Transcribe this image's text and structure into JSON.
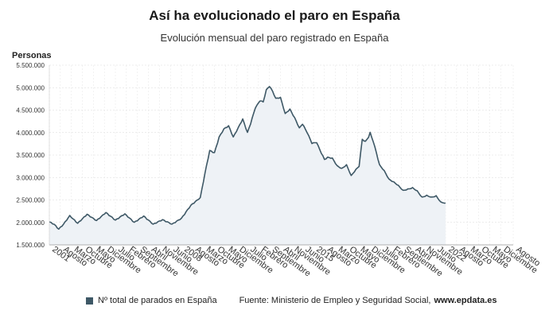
{
  "chart_data": {
    "type": "area",
    "title": "Así ha evolucionado el paro en España",
    "subtitle": "Evolución mensual del paro registrado en España",
    "ylabel": "Personas",
    "ylim": [
      1500000,
      5500000
    ],
    "yticks": [
      "1.500.000",
      "2.000.000",
      "2.500.000",
      "3.000.000",
      "3.500.000",
      "4.000.000",
      "4.500.000",
      "5.000.000",
      "5.500.000"
    ],
    "ytick_values": [
      1500000,
      2000000,
      2500000,
      3000000,
      3500000,
      4000000,
      4500000,
      5000000,
      5500000
    ],
    "x_labels": [
      "2001",
      "Agosto",
      "Marzo",
      "Octubre",
      "Mayo",
      "Diciembre",
      "Julio",
      "Febrero",
      "Septiembre",
      "Abril",
      "Noviembre",
      "Junio",
      "2008",
      "Agosto",
      "Marzo",
      "Octubre",
      "Mayo",
      "Diciembre",
      "Julio",
      "Febrero",
      "Septiembre",
      "Abril",
      "Noviembre",
      "Junio",
      "2015",
      "Agosto",
      "Marzo",
      "Octubre",
      "Mayo",
      "Diciembre",
      "Julio",
      "Febrero",
      "Septiembre",
      "Abril",
      "Noviembre",
      "Junio",
      "2022",
      "Agosto",
      "Marzo",
      "Octubre",
      "Mayo",
      "Diciembre",
      "Agosto"
    ],
    "x_label_months": [
      0,
      7,
      14,
      21,
      28,
      35,
      42,
      49,
      56,
      63,
      70,
      77,
      84,
      91,
      98,
      105,
      112,
      119,
      126,
      133,
      140,
      147,
      154,
      161,
      168,
      175,
      182,
      189,
      196,
      203,
      210,
      217,
      224,
      231,
      238,
      245,
      252,
      259,
      266,
      273,
      280,
      287,
      295
    ],
    "x_start": "2001-01",
    "x_end": "2025-08",
    "anchors": [
      [
        0,
        2010000
      ],
      [
        3,
        1960000
      ],
      [
        6,
        1850000
      ],
      [
        9,
        1960000
      ],
      [
        13,
        2150000
      ],
      [
        18,
        1980000
      ],
      [
        24,
        2180000
      ],
      [
        30,
        2040000
      ],
      [
        36,
        2220000
      ],
      [
        42,
        2050000
      ],
      [
        48,
        2190000
      ],
      [
        54,
        2000000
      ],
      [
        60,
        2140000
      ],
      [
        66,
        1960000
      ],
      [
        72,
        2060000
      ],
      [
        78,
        1960000
      ],
      [
        84,
        2090000
      ],
      [
        90,
        2380000
      ],
      [
        96,
        2550000
      ],
      [
        99,
        3100000
      ],
      [
        102,
        3600000
      ],
      [
        105,
        3550000
      ],
      [
        108,
        3900000
      ],
      [
        111,
        4080000
      ],
      [
        114,
        4150000
      ],
      [
        117,
        3900000
      ],
      [
        120,
        4100000
      ],
      [
        123,
        4300000
      ],
      [
        126,
        4000000
      ],
      [
        128,
        4200000
      ],
      [
        131,
        4550000
      ],
      [
        134,
        4710000
      ],
      [
        136,
        4680000
      ],
      [
        138,
        4950000
      ],
      [
        140,
        5030000
      ],
      [
        142,
        4920000
      ],
      [
        144,
        4760000
      ],
      [
        147,
        4780000
      ],
      [
        150,
        4420000
      ],
      [
        153,
        4520000
      ],
      [
        156,
        4330000
      ],
      [
        159,
        4100000
      ],
      [
        161,
        4190000
      ],
      [
        164,
        4000000
      ],
      [
        167,
        3760000
      ],
      [
        170,
        3780000
      ],
      [
        173,
        3540000
      ],
      [
        175,
        3400000
      ],
      [
        177,
        3450000
      ],
      [
        180,
        3430000
      ],
      [
        183,
        3260000
      ],
      [
        186,
        3200000
      ],
      [
        189,
        3280000
      ],
      [
        192,
        3040000
      ],
      [
        195,
        3180000
      ],
      [
        197,
        3250000
      ],
      [
        199,
        3850000
      ],
      [
        201,
        3800000
      ],
      [
        203,
        3900000
      ],
      [
        204,
        4000000
      ],
      [
        206,
        3800000
      ],
      [
        208,
        3550000
      ],
      [
        210,
        3280000
      ],
      [
        213,
        3150000
      ],
      [
        216,
        2960000
      ],
      [
        219,
        2900000
      ],
      [
        222,
        2820000
      ],
      [
        225,
        2710000
      ],
      [
        228,
        2740000
      ],
      [
        231,
        2770000
      ],
      [
        234,
        2700000
      ],
      [
        237,
        2560000
      ],
      [
        240,
        2600000
      ],
      [
        243,
        2560000
      ],
      [
        246,
        2590000
      ],
      [
        249,
        2450000
      ],
      [
        252,
        2430000
      ]
    ],
    "series": [
      {
        "name": "Nº total de parados en España",
        "color": "#3e5866"
      }
    ],
    "legend_position": "bottom-left",
    "grid": true,
    "source": "Fuente: Ministerio de Empleo y Seguridad Social,",
    "source_site": "www.epdata.es"
  }
}
